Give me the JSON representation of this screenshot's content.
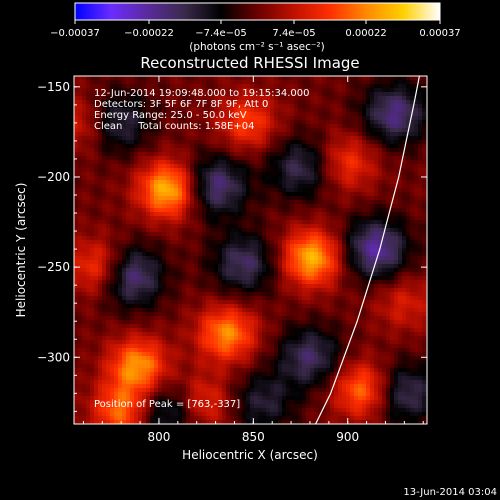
{
  "chart_data": {
    "type": "heatmap",
    "title": "Reconstructed RHESSI Image",
    "xlabel": "Heliocentric X (arcsec)",
    "ylabel": "Heliocentric Y (arcsec)",
    "xlim": [
      755,
      942
    ],
    "ylim": [
      -337,
      -144
    ],
    "x_ticks": [
      800,
      850,
      900
    ],
    "y_ticks": [
      -300,
      -250,
      -200,
      -150
    ],
    "x_tick_labels": [
      "800",
      "850",
      "900"
    ],
    "y_tick_labels": [
      "−300",
      "−250",
      "−200",
      "−150"
    ],
    "colorbar": {
      "min": -0.00037,
      "max": 0.00037,
      "tick_values": [
        -0.00037,
        -0.00022,
        -7.4e-05,
        7.4e-05,
        0.00022,
        0.00037
      ],
      "tick_labels": [
        "−0.00037",
        "−0.00022",
        "−7.4e−05",
        "7.4e−05",
        "0.00022",
        "0.00037"
      ],
      "unit_label": "(photons cm⁻² s⁻¹ asec⁻²)",
      "colormap": [
        "#0000ff",
        "#6a2cff",
        "#5a2a9c",
        "#3a2a4a",
        "#000000",
        "#6a0000",
        "#c01000",
        "#ff3000",
        "#ff8a00",
        "#ffd000",
        "#ffffff"
      ]
    },
    "sources": [
      {
        "x": 805,
        "y": -207,
        "intensity": 1.0
      },
      {
        "x": 881,
        "y": -245,
        "intensity": 0.95
      },
      {
        "x": 836,
        "y": -287,
        "intensity": 0.8
      },
      {
        "x": 789,
        "y": -305,
        "intensity": 0.85
      },
      {
        "x": 768,
        "y": -250,
        "intensity": 0.6
      },
      {
        "x": 847,
        "y": -170,
        "intensity": 0.55
      },
      {
        "x": 900,
        "y": -192,
        "intensity": 0.5
      },
      {
        "x": 908,
        "y": -318,
        "intensity": 0.75
      },
      {
        "x": 780,
        "y": -330,
        "intensity": 0.7
      },
      {
        "x": 930,
        "y": -270,
        "intensity": 0.35
      },
      {
        "x": 823,
        "y": -325,
        "intensity": 0.5
      },
      {
        "x": 760,
        "y": -170,
        "intensity": 0.4
      }
    ],
    "negative_lobes": [
      {
        "x": 830,
        "y": -205,
        "depth": 0.7
      },
      {
        "x": 785,
        "y": -255,
        "depth": 0.75
      },
      {
        "x": 845,
        "y": -248,
        "depth": 0.6
      },
      {
        "x": 875,
        "y": -195,
        "depth": 0.55
      },
      {
        "x": 915,
        "y": -240,
        "depth": 0.8
      },
      {
        "x": 925,
        "y": -165,
        "depth": 0.7
      },
      {
        "x": 778,
        "y": -170,
        "depth": 0.55
      },
      {
        "x": 880,
        "y": -300,
        "depth": 0.6
      },
      {
        "x": 930,
        "y": -320,
        "depth": 0.6
      },
      {
        "x": 805,
        "y": -330,
        "depth": 0.55
      },
      {
        "x": 855,
        "y": -325,
        "depth": 0.45
      }
    ],
    "limb_curve": [
      [
        883,
        -337
      ],
      [
        891,
        -320
      ],
      [
        898,
        -300
      ],
      [
        905,
        -280
      ],
      [
        911,
        -260
      ],
      [
        917,
        -240
      ],
      [
        922,
        -220
      ],
      [
        927,
        -200
      ],
      [
        931,
        -180
      ],
      [
        935,
        -160
      ],
      [
        938,
        -144
      ]
    ],
    "annotations": {
      "time_range": "12-Jun-2014 19:09:48.000 to 19:15:34.000",
      "detectors": "Detectors: 3F 5F 6F 7F 8F 9F, Att 0",
      "energy_range": "Energy Range: 25.0 - 50.0 keV",
      "clean_counts": "Clean     Total counts: 1.58E+04",
      "peak_position": "Position of Peak = [763,-337]"
    },
    "timestamp": "13-Jun-2014 03:04"
  }
}
